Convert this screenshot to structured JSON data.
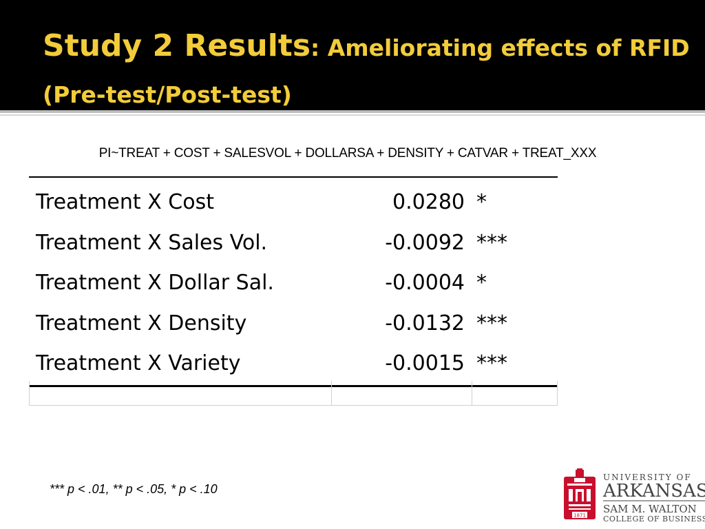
{
  "slide": {
    "title_main": "Study 2 Results",
    "title_sub": ": Ameliorating effects  of RFID (Pre-test/Post-test)"
  },
  "formula": "PI~TREAT + COST + SALESVOL + DOLLARSA + DENSITY + CATVAR + TREAT_XXX",
  "results": [
    {
      "label": "Treatment X Cost",
      "value": "0.0280",
      "sig": "*"
    },
    {
      "label": "Treatment X Sales Vol.",
      "value": "-0.0092",
      "sig": "***"
    },
    {
      "label": "Treatment X Dollar Sal.",
      "value": "-0.0004",
      "sig": "*"
    },
    {
      "label": "Treatment X Density",
      "value": "-0.0132",
      "sig": "***"
    },
    {
      "label": "Treatment X Variety",
      "value": "-0.0015",
      "sig": "***"
    }
  ],
  "footnote": "*** p < .01, ** p < .05, * p < .10",
  "logo": {
    "line1": "UNIVERSITY OF",
    "line2": "ARKANSAS",
    "line3": "SAM M. WALTON",
    "line4": "COLLEGE OF BUSINESS",
    "seal_year": "1871"
  },
  "colors": {
    "title": "#f2cc3a",
    "header_bg": "#000000",
    "logo_red": "#c8102e"
  }
}
